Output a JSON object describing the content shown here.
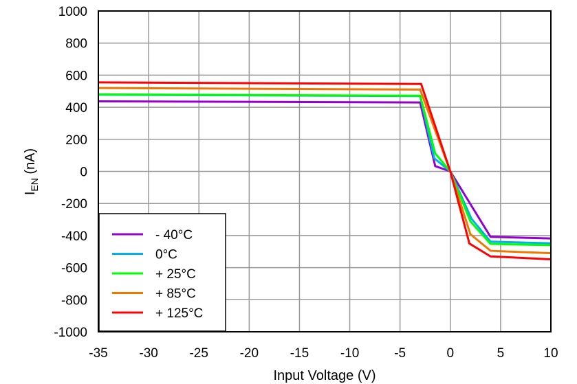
{
  "chart_data": {
    "type": "line",
    "xlabel": "Input Voltage (V)",
    "ylabel": "I",
    "ylabel_sub": "EN",
    "ylabel_unit": " (nA)",
    "xlim": [
      -35,
      10
    ],
    "ylim": [
      -1000,
      1000
    ],
    "xticks": [
      -35,
      -30,
      -25,
      -20,
      -15,
      -10,
      -5,
      0,
      5,
      10
    ],
    "yticks": [
      -1000,
      -800,
      -600,
      -400,
      -200,
      0,
      200,
      400,
      600,
      800,
      1000
    ],
    "grid": true,
    "legend_position": "bottom-left",
    "series": [
      {
        "name": "- 40°C",
        "color": "#9400D3",
        "x": [
          -35,
          -3,
          -1.5,
          0,
          4,
          10
        ],
        "y": [
          437,
          430,
          33,
          0,
          -408,
          -418
        ]
      },
      {
        "name": "0°C",
        "color": "#00B0F0",
        "x": [
          -35,
          -3,
          -1.6,
          0,
          2.1,
          4,
          10
        ],
        "y": [
          478,
          470,
          82,
          0,
          -295,
          -438,
          -448
        ]
      },
      {
        "name": "+ 25°C",
        "color": "#00FF00",
        "x": [
          -35,
          -3,
          -1.5,
          0,
          2,
          4,
          10
        ],
        "y": [
          480,
          472,
          112,
          0,
          -312,
          -452,
          -460
        ]
      },
      {
        "name": "+ 85°C",
        "color": "#F07800",
        "x": [
          -35,
          -3,
          0,
          2,
          4,
          10
        ],
        "y": [
          520,
          510,
          0,
          -392,
          -495,
          -510
        ]
      },
      {
        "name": "+ 125°C",
        "color": "#FF0000",
        "x": [
          -35,
          -2.9,
          0,
          1.9,
          4,
          10
        ],
        "y": [
          555,
          545,
          0,
          -450,
          -530,
          -548
        ]
      }
    ]
  }
}
